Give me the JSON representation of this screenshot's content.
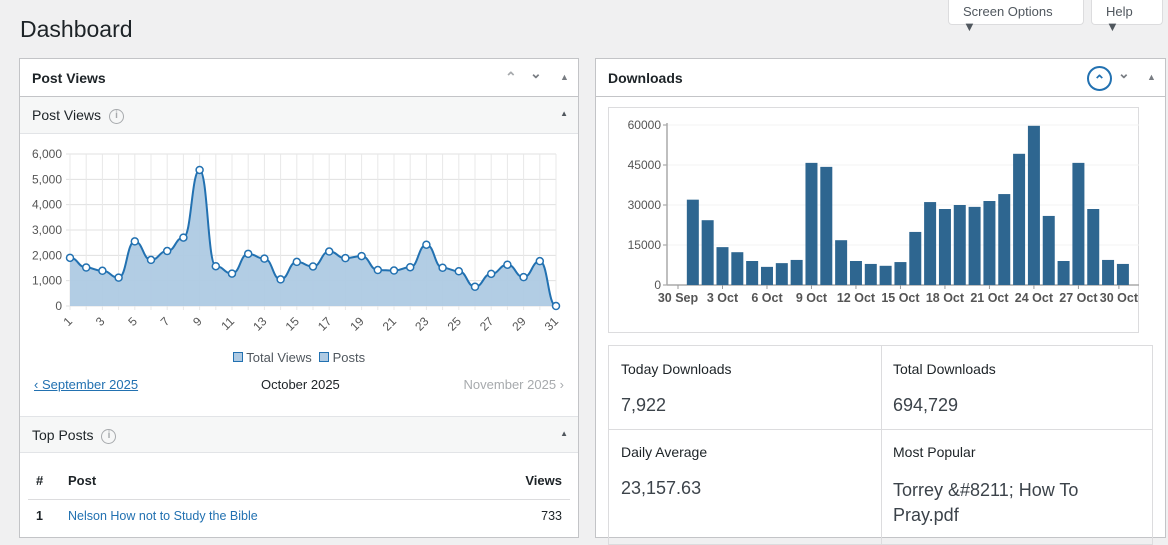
{
  "page_title": "Dashboard",
  "screen_options": "Screen Options ▼",
  "help": "Help ▼",
  "post_views_panel": {
    "title": "Post Views",
    "subtitle": "Post Views",
    "legend": [
      "Total Views",
      "Posts"
    ],
    "prev_month": "‹ September 2025",
    "current_month": "October 2025",
    "next_month": "November 2025 ›"
  },
  "top_posts": {
    "title": "Top Posts",
    "headers": [
      "#",
      "Post",
      "Views"
    ],
    "rows": [
      {
        "rank": "1",
        "post": "Nelson How not to Study the Bible",
        "views": "733"
      }
    ]
  },
  "downloads_panel": {
    "title": "Downloads",
    "stats": [
      {
        "label": "Today Downloads",
        "value": "7,922"
      },
      {
        "label": "Total Downloads",
        "value": "694,729"
      },
      {
        "label": "Daily Average",
        "value": "23,157.63"
      },
      {
        "label": "Most Popular",
        "value": "Torrey &#8211; How To Pray.pdf"
      }
    ]
  },
  "chart_data": [
    {
      "type": "area",
      "title": "Post Views",
      "x": [
        1,
        2,
        3,
        4,
        5,
        6,
        7,
        8,
        9,
        10,
        11,
        12,
        13,
        14,
        15,
        16,
        17,
        18,
        19,
        20,
        21,
        22,
        23,
        24,
        25,
        26,
        27,
        28,
        29,
        30,
        31
      ],
      "xticks": [
        "1",
        "3",
        "5",
        "7",
        "9",
        "11",
        "13",
        "15",
        "17",
        "19",
        "21",
        "23",
        "25",
        "27",
        "29",
        "31"
      ],
      "yticks": [
        "0",
        "1,000",
        "2,000",
        "3,000",
        "4,000",
        "5,000",
        "6,000"
      ],
      "ylim": [
        0,
        6000
      ],
      "series": [
        {
          "name": "Total Views",
          "values": [
            1900,
            1520,
            1390,
            1120,
            2550,
            1820,
            2170,
            2700,
            5370,
            1570,
            1280,
            2060,
            1870,
            1050,
            1740,
            1560,
            2150,
            1890,
            1970,
            1420,
            1400,
            1530,
            2420,
            1510,
            1370,
            760,
            1270,
            1630,
            1140,
            1770,
            0
          ]
        }
      ],
      "color": "#2271b1",
      "fill": "#aecae3"
    },
    {
      "type": "bar",
      "title": "Downloads",
      "xticks": [
        "30 Sep",
        "3 Oct",
        "6 Oct",
        "9 Oct",
        "12 Oct",
        "15 Oct",
        "18 Oct",
        "21 Oct",
        "24 Oct",
        "27 Oct",
        "30 Oct"
      ],
      "yticks": [
        "0",
        "15000",
        "30000",
        "45000",
        "60000"
      ],
      "ylim": [
        0,
        60000
      ],
      "values": [
        32000,
        24300,
        14200,
        12300,
        9000,
        6800,
        8200,
        9400,
        45800,
        44300,
        16800,
        9000,
        7900,
        7200,
        8600,
        19900,
        31100,
        28500,
        30000,
        29300,
        31500,
        34100,
        49200,
        59700,
        25900,
        9000,
        45800,
        28500,
        9400,
        7900
      ],
      "color": "#2e6690"
    }
  ]
}
